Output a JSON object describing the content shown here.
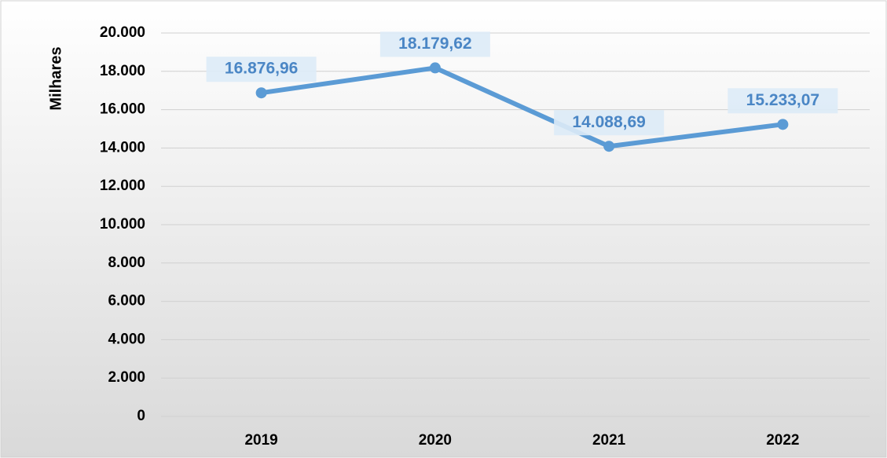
{
  "chart_data": {
    "type": "line",
    "y_label": "Milhares",
    "categories": [
      "2019",
      "2020",
      "2021",
      "2022"
    ],
    "series": [
      {
        "name": "Milhares",
        "color": "#5b9bd5",
        "values": [
          16876.96,
          18179.62,
          14088.69,
          15233.07
        ],
        "value_labels": [
          "16.876,96",
          "18.179,62",
          "14.088,69",
          "15.233,07"
        ]
      }
    ],
    "ylim": [
      0,
      20000
    ],
    "yticks": [
      0,
      {
        "value": 2000,
        "label": "2.000"
      },
      {
        "value": 4000,
        "label": "4.000"
      },
      {
        "value": 6000,
        "label": "6.000"
      },
      {
        "value": 8000,
        "label": "8.000"
      },
      {
        "value": 10000,
        "label": "10.000"
      },
      {
        "value": 12000,
        "label": "12.000"
      },
      {
        "value": 14000,
        "label": "14.000"
      },
      {
        "value": 16000,
        "label": "16.000"
      },
      {
        "value": 18000,
        "label": "18.000"
      },
      {
        "value": 20000,
        "label": "20.000"
      }
    ],
    "grid": true
  }
}
